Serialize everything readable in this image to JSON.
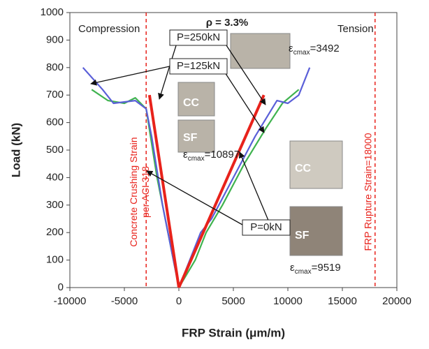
{
  "chart_data": {
    "type": "line",
    "x_label": "FRP Strain (μm/m)",
    "y_label": "Load (kN)",
    "xlim": [
      -10000,
      20000
    ],
    "xticks": [
      -10000,
      -5000,
      0,
      5000,
      10000,
      15000,
      20000
    ],
    "ylim": [
      0,
      1000
    ],
    "yticks": [
      0,
      100,
      200,
      300,
      400,
      500,
      600,
      700,
      800,
      900,
      1000
    ],
    "series": [
      {
        "name": "P=250kN",
        "color": "#e8221b",
        "x": [
          0,
          -2700,
          null,
          0,
          7800
        ],
        "values": [
          0,
          700,
          null,
          0,
          700
        ]
      },
      {
        "name": "P=125kN",
        "color": "#5a5fd8",
        "x": [
          0,
          -500,
          -1500,
          -2500,
          -3000,
          -4000,
          -6000,
          -7000,
          -8800,
          null,
          0,
          2000,
          3000,
          5000,
          7000,
          9000,
          10000,
          11000,
          12000
        ],
        "values": [
          0,
          100,
          300,
          550,
          650,
          680,
          670,
          720,
          800,
          null,
          0,
          200,
          250,
          400,
          550,
          680,
          670,
          700,
          800
        ]
      },
      {
        "name": "P=0kN",
        "color": "#3fb34f",
        "x": [
          0,
          -1000,
          -2000,
          -3000,
          -4000,
          -5000,
          -6500,
          -8000,
          null,
          0,
          1500,
          2500,
          4000,
          6000,
          8000,
          9500,
          11000
        ],
        "values": [
          0,
          200,
          400,
          650,
          690,
          670,
          680,
          720,
          null,
          0,
          100,
          200,
          300,
          450,
          580,
          670,
          720
        ]
      }
    ],
    "reference_lines": [
      {
        "x": -3000,
        "label_lines": [
          "Concrete Crushing Strain",
          "per ACI 318"
        ]
      },
      {
        "x": 18000,
        "label_lines": [
          "FRP Rupture Strain=18000"
        ]
      }
    ],
    "annotations": {
      "compression": "Compression",
      "tension": "Tension",
      "rho": "ρ = 3.3%",
      "photo_labels": [
        "CC",
        "SF",
        "CC",
        "SF"
      ],
      "strain_labels": [
        {
          "symbol": "ε",
          "sub": "cmax",
          "text": "=3492"
        },
        {
          "symbol": "ε",
          "sub": "cmax",
          "text": "=10897"
        },
        {
          "symbol": "ε",
          "sub": "cmax",
          "text": "=9519"
        }
      ]
    }
  }
}
